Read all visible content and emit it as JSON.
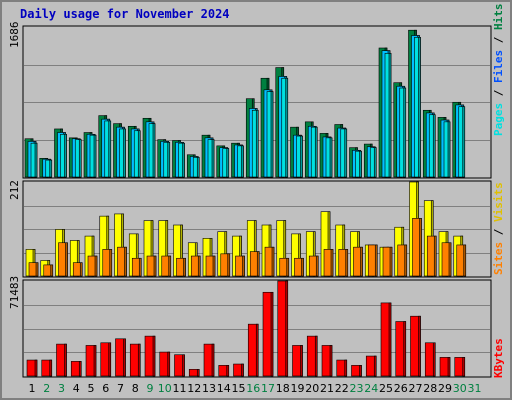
{
  "title": "Daily usage for November 2024",
  "colors": {
    "background": "#c0c0c0",
    "hits": "#008040",
    "files": "#00c0ff",
    "pages": "#00e0e0",
    "visits": "#ffff00",
    "sites": "#ff8000",
    "kbytes": "#ff0000",
    "title": "#0000c0",
    "weekday_label": "#000000",
    "weekend_label": "#008040"
  },
  "panels": {
    "top": {
      "max_label": "1686",
      "labels": {
        "pages": "Pages",
        "sep1": " / ",
        "files": "Files",
        "sep2": " / ",
        "hits": "Hits"
      }
    },
    "middle": {
      "max_label": "212",
      "labels": {
        "sites": "Sites",
        "sep1": " / ",
        "visits": "Visits"
      }
    },
    "bottom": {
      "max_label": "71483",
      "labels": {
        "kbytes": "KBytes"
      }
    }
  },
  "chart_data": {
    "type": "bar",
    "title": "Daily usage for November 2024",
    "categories": [
      "1",
      "2",
      "3",
      "4",
      "5",
      "6",
      "7",
      "8",
      "9",
      "10",
      "11",
      "12",
      "13",
      "14",
      "15",
      "16",
      "17",
      "18",
      "19",
      "20",
      "21",
      "22",
      "23",
      "24",
      "25",
      "26",
      "27",
      "28",
      "29",
      "30",
      "31"
    ],
    "weekend_days": [
      "2",
      "3",
      "9",
      "10",
      "16",
      "17",
      "23",
      "24",
      "30",
      "31"
    ],
    "panels": [
      {
        "name": "top",
        "ymax": 1686,
        "series": [
          {
            "name": "Hits",
            "values": [
              430,
              210,
              540,
              440,
              500,
              690,
              600,
              570,
              660,
              420,
              410,
              250,
              470,
              350,
              380,
              880,
              1110,
              1230,
              560,
              620,
              490,
              590,
              330,
              370,
              1450,
              1060,
              1650,
              750,
              670,
              840,
              0
            ]
          },
          {
            "name": "Files",
            "values": [
              400,
              200,
              500,
              430,
              480,
              650,
              560,
              540,
              620,
              400,
              390,
              230,
              440,
              330,
              360,
              770,
              980,
              1130,
              470,
              570,
              450,
              550,
              300,
              340,
              1420,
              1020,
              1590,
              720,
              640,
              810,
              0
            ]
          },
          {
            "name": "Pages",
            "values": [
              380,
              190,
              480,
              420,
              470,
              630,
              540,
              520,
              600,
              390,
              380,
              220,
              420,
              320,
              350,
              750,
              960,
              1110,
              460,
              560,
              440,
              540,
              290,
              330,
              1390,
              1000,
              1570,
              700,
              620,
              790,
              0
            ]
          }
        ]
      },
      {
        "name": "middle",
        "ymax": 212,
        "series": [
          {
            "name": "Visits",
            "values": [
              60,
              35,
              105,
              80,
              90,
              135,
              140,
              95,
              125,
              125,
              115,
              75,
              85,
              100,
              90,
              125,
              115,
              125,
              95,
              100,
              145,
              115,
              100,
              70,
              65,
              110,
              212,
              170,
              100,
              90,
              0
            ]
          },
          {
            "name": "Sites",
            "values": [
              30,
              25,
              75,
              30,
              45,
              60,
              65,
              40,
              45,
              45,
              40,
              45,
              45,
              50,
              45,
              55,
              65,
              40,
              40,
              45,
              60,
              60,
              65,
              70,
              65,
              70,
              130,
              90,
              75,
              70,
              0
            ]
          }
        ]
      },
      {
        "name": "bottom",
        "ymax": 71483,
        "series": [
          {
            "name": "KBytes",
            "values": [
              12000,
              12000,
              24000,
              11000,
              23000,
              25000,
              28000,
              24000,
              30000,
              18000,
              16000,
              5000,
              24000,
              8000,
              9000,
              39000,
              63000,
              71483,
              23000,
              30000,
              23000,
              12000,
              8000,
              15000,
              55000,
              41000,
              45000,
              25000,
              14000,
              14000,
              0
            ]
          }
        ]
      }
    ]
  }
}
